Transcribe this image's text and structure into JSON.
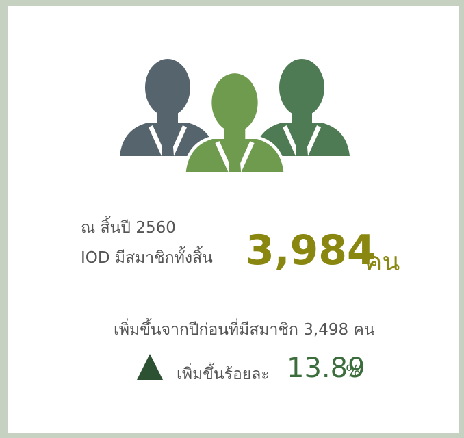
{
  "stats": {
    "year_label": "ณ สิ้นปี 2560",
    "member_label": "IOD มีสมาชิกทั้งสิ้น",
    "member_count": "3,984",
    "member_unit": "คน",
    "previous_text": "เพิ่มขึ้นจากปีก่อนที่มีสมาชิก 3,498 คน",
    "growth_label": "เพิ่มขึ้นร้อยละ",
    "growth_value": "13.89",
    "growth_unit": "%"
  }
}
